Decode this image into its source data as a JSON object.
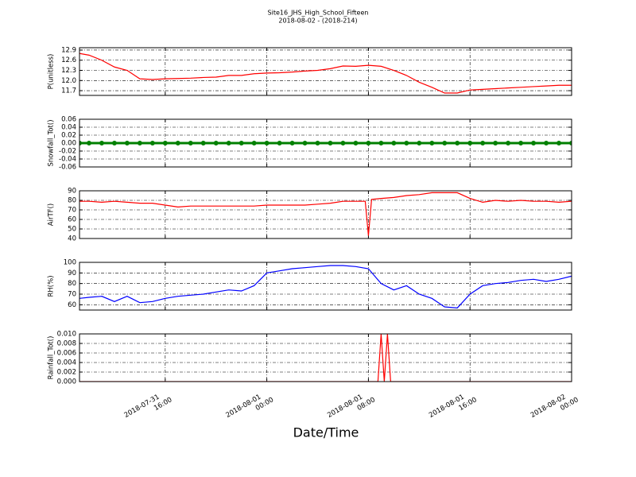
{
  "title": "Site16_JHS_High_School_Fifteen",
  "subtitle": "2018-08-02 - (2018-214)",
  "xlabel": "Date/Time",
  "xlim": [
    "2018-07-31 09:15",
    "2018-08-02 00:00"
  ],
  "xticks": [
    "2018-07-31 16:00",
    "2018-08-01 00:00",
    "2018-08-01 08:00",
    "2018-08-01 16:00",
    "2018-08-02 00:00"
  ],
  "chart_data": [
    {
      "type": "line",
      "ylabel": "P(unitless)",
      "color": "#ff0000",
      "grid": true,
      "x": [
        "2018-07-31 09:15",
        "2018-07-31 10:00",
        "2018-07-31 11:00",
        "2018-07-31 12:00",
        "2018-07-31 13:00",
        "2018-07-31 14:00",
        "2018-07-31 15:00",
        "2018-07-31 16:00",
        "2018-07-31 17:00",
        "2018-07-31 18:00",
        "2018-07-31 19:00",
        "2018-07-31 20:00",
        "2018-07-31 21:00",
        "2018-07-31 22:00",
        "2018-07-31 23:00",
        "2018-08-01 00:00",
        "2018-08-01 01:00",
        "2018-08-01 02:00",
        "2018-08-01 03:00",
        "2018-08-01 04:00",
        "2018-08-01 05:00",
        "2018-08-01 06:00",
        "2018-08-01 07:00",
        "2018-08-01 08:00",
        "2018-08-01 09:00",
        "2018-08-01 10:00",
        "2018-08-01 11:00",
        "2018-08-01 12:00",
        "2018-08-01 13:00",
        "2018-08-01 14:00",
        "2018-08-01 15:00",
        "2018-08-01 16:00",
        "2018-08-01 17:00",
        "2018-08-01 18:00",
        "2018-08-01 19:00",
        "2018-08-01 20:00",
        "2018-08-01 21:00",
        "2018-08-01 22:00",
        "2018-08-01 23:00",
        "2018-08-02 00:00"
      ],
      "values": [
        12.8,
        12.75,
        12.6,
        12.4,
        12.3,
        12.05,
        12.03,
        12.05,
        12.06,
        12.07,
        12.09,
        12.1,
        12.15,
        12.15,
        12.2,
        12.22,
        12.23,
        12.25,
        12.28,
        12.3,
        12.35,
        12.43,
        12.42,
        12.45,
        12.42,
        12.3,
        12.15,
        11.95,
        11.8,
        11.63,
        11.63,
        11.72,
        11.74,
        11.76,
        11.78,
        11.8,
        11.82,
        11.84,
        11.86,
        11.86
      ],
      "ylim": [
        11.56,
        12.97
      ],
      "yticks": [
        11.7,
        {
          "value": 12,
          "label": "12.0"
        },
        12.3,
        12.6,
        12.9
      ]
    },
    {
      "type": "line",
      "ylabel": "Snowfall_Tot()",
      "color": "#008000",
      "marker": "o",
      "grid": true,
      "x": [
        "2018-07-31 09:15",
        "2018-07-31 10:00",
        "2018-07-31 11:00",
        "2018-07-31 12:00",
        "2018-07-31 13:00",
        "2018-07-31 14:00",
        "2018-07-31 15:00",
        "2018-07-31 16:00",
        "2018-07-31 17:00",
        "2018-07-31 18:00",
        "2018-07-31 19:00",
        "2018-07-31 20:00",
        "2018-07-31 21:00",
        "2018-07-31 22:00",
        "2018-07-31 23:00",
        "2018-08-01 00:00",
        "2018-08-01 01:00",
        "2018-08-01 02:00",
        "2018-08-01 03:00",
        "2018-08-01 04:00",
        "2018-08-01 05:00",
        "2018-08-01 06:00",
        "2018-08-01 07:00",
        "2018-08-01 08:00",
        "2018-08-01 09:00",
        "2018-08-01 10:00",
        "2018-08-01 11:00",
        "2018-08-01 12:00",
        "2018-08-01 13:00",
        "2018-08-01 14:00",
        "2018-08-01 15:00",
        "2018-08-01 16:00",
        "2018-08-01 17:00",
        "2018-08-01 18:00",
        "2018-08-01 19:00",
        "2018-08-01 20:00",
        "2018-08-01 21:00",
        "2018-08-01 22:00",
        "2018-08-01 23:00",
        "2018-08-02 00:00"
      ],
      "values": [
        0,
        0,
        0,
        0,
        0,
        0,
        0,
        0,
        0,
        0,
        0,
        0,
        0,
        0,
        0,
        0,
        0,
        0,
        0,
        0,
        0,
        0,
        0,
        0,
        0,
        0,
        0,
        0,
        0,
        0,
        0,
        0,
        0,
        0,
        0,
        0,
        0,
        0,
        0,
        0
      ],
      "ylim": [
        -0.06,
        0.06
      ],
      "yticks": [
        -0.06,
        -0.04,
        -0.02,
        {
          "value": 0,
          "label": "0.00"
        },
        0.02,
        0.04,
        0.06
      ]
    },
    {
      "type": "line",
      "ylabel": "AirTF()",
      "color": "#ff0000",
      "grid": true,
      "x": [
        "2018-07-31 09:15",
        "2018-07-31 10:00",
        "2018-07-31 11:00",
        "2018-07-31 12:00",
        "2018-07-31 13:00",
        "2018-07-31 14:00",
        "2018-07-31 15:00",
        "2018-07-31 16:00",
        "2018-07-31 17:00",
        "2018-07-31 18:00",
        "2018-07-31 19:00",
        "2018-07-31 20:00",
        "2018-07-31 21:00",
        "2018-07-31 22:00",
        "2018-07-31 23:00",
        "2018-08-01 00:00",
        "2018-08-01 01:00",
        "2018-08-01 02:00",
        "2018-08-01 03:00",
        "2018-08-01 04:00",
        "2018-08-01 05:00",
        "2018-08-01 06:00",
        "2018-08-01 07:00",
        "2018-08-01 07:45",
        "2018-08-01 08:00",
        "2018-08-01 08:15",
        "2018-08-01 09:00",
        "2018-08-01 10:00",
        "2018-08-01 11:00",
        "2018-08-01 12:00",
        "2018-08-01 13:00",
        "2018-08-01 14:00",
        "2018-08-01 15:00",
        "2018-08-01 16:00",
        "2018-08-01 17:00",
        "2018-08-01 18:00",
        "2018-08-01 19:00",
        "2018-08-01 20:00",
        "2018-08-01 21:00",
        "2018-08-01 22:00",
        "2018-08-01 23:00",
        "2018-08-02 00:00"
      ],
      "values": [
        79,
        79,
        78,
        79,
        78,
        77,
        77,
        75,
        73,
        74,
        74,
        74,
        74,
        74,
        74,
        75,
        75,
        75,
        75,
        76,
        77,
        79,
        79,
        79,
        43,
        81,
        82,
        83,
        85,
        86,
        88,
        88,
        88,
        82,
        78,
        80,
        79,
        80,
        79,
        79,
        78,
        79
      ],
      "ylim": [
        40,
        90
      ],
      "yticks": [
        40,
        50,
        60,
        70,
        80,
        90
      ]
    },
    {
      "type": "line",
      "ylabel": "RH(%)",
      "color": "#0000ff",
      "grid": true,
      "x": [
        "2018-07-31 09:15",
        "2018-07-31 10:00",
        "2018-07-31 11:00",
        "2018-07-31 12:00",
        "2018-07-31 13:00",
        "2018-07-31 14:00",
        "2018-07-31 15:00",
        "2018-07-31 16:00",
        "2018-07-31 17:00",
        "2018-07-31 18:00",
        "2018-07-31 19:00",
        "2018-07-31 20:00",
        "2018-07-31 21:00",
        "2018-07-31 22:00",
        "2018-07-31 23:00",
        "2018-08-01 00:00",
        "2018-08-01 01:00",
        "2018-08-01 02:00",
        "2018-08-01 03:00",
        "2018-08-01 04:00",
        "2018-08-01 05:00",
        "2018-08-01 06:00",
        "2018-08-01 07:00",
        "2018-08-01 08:00",
        "2018-08-01 09:00",
        "2018-08-01 10:00",
        "2018-08-01 11:00",
        "2018-08-01 12:00",
        "2018-08-01 13:00",
        "2018-08-01 14:00",
        "2018-08-01 15:00",
        "2018-08-01 16:00",
        "2018-08-01 17:00",
        "2018-08-01 18:00",
        "2018-08-01 19:00",
        "2018-08-01 20:00",
        "2018-08-01 21:00",
        "2018-08-01 22:00",
        "2018-08-01 23:00",
        "2018-08-02 00:00"
      ],
      "values": [
        66,
        67,
        68,
        63,
        68,
        62,
        63,
        66,
        68,
        69,
        70,
        72,
        74,
        73,
        78,
        90,
        92,
        94,
        95,
        96,
        97,
        97,
        96,
        94,
        80,
        74,
        78,
        70,
        66,
        58,
        57,
        70,
        78,
        80,
        81,
        83,
        84,
        82,
        84,
        87
      ],
      "ylim": [
        55,
        100
      ],
      "yticks": [
        60,
        70,
        80,
        90,
        100
      ]
    },
    {
      "type": "line",
      "ylabel": "Rainfall_Tot()",
      "color": "#ff0000",
      "grid": true,
      "x": [
        "2018-07-31 09:15",
        "2018-08-01 08:45",
        "2018-08-01 09:00",
        "2018-08-01 09:15",
        "2018-08-01 09:30",
        "2018-08-01 09:45",
        "2018-08-02 00:00"
      ],
      "values": [
        0,
        0,
        0.01,
        0,
        0.01,
        0,
        0
      ],
      "ylim": [
        0,
        0.01
      ],
      "yticks": [
        {
          "value": 0,
          "label": "0.000"
        },
        0.002,
        0.004,
        0.006,
        0.008,
        {
          "value": 0.01,
          "label": "0.010"
        }
      ]
    }
  ]
}
